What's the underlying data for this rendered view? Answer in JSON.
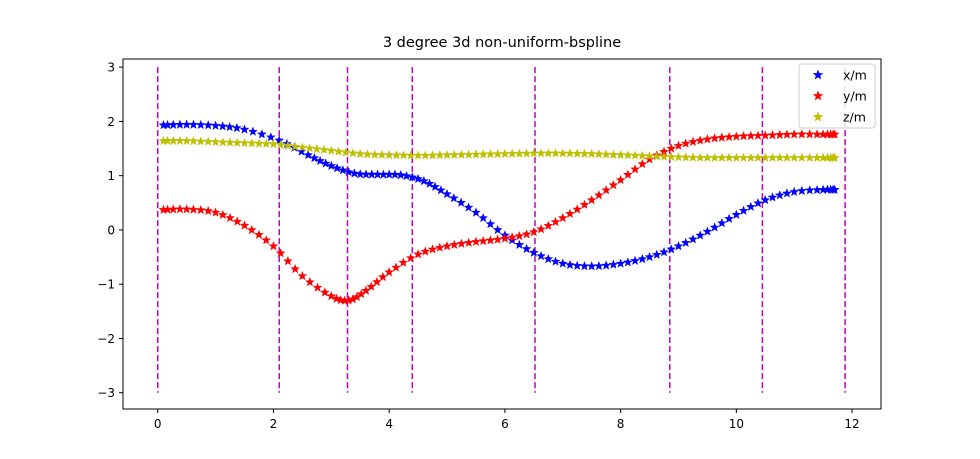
{
  "chart_data": {
    "type": "scatter",
    "title": "3 degree 3d non-uniform-bspline",
    "xlabel": "",
    "ylabel": "",
    "xlim": [
      -0.6,
      12.5
    ],
    "ylim": [
      -3.3,
      3.15
    ],
    "xticks": [
      0,
      2,
      4,
      6,
      8,
      10,
      12
    ],
    "yticks": [
      -3,
      -2,
      -1,
      0,
      1,
      2,
      3
    ],
    "xtick_labels": [
      "0",
      "2",
      "4",
      "6",
      "8",
      "10",
      "12"
    ],
    "ytick_labels": [
      "−3",
      "−2",
      "−1",
      "0",
      "1",
      "2",
      "3"
    ],
    "grid": false,
    "legend_position": "top-right",
    "marker": "star",
    "knot_lines": {
      "color": "#bf00bf",
      "style": "dashed",
      "x": [
        0.0,
        2.1,
        3.28,
        4.4,
        6.52,
        8.85,
        10.45,
        11.88
      ],
      "y_range": [
        -3,
        3
      ]
    },
    "series": [
      {
        "name": "x/m",
        "color": "#0000ff",
        "x": [
          0.1,
          0.5,
          1.0,
          1.5,
          2.1,
          2.6,
          3.0,
          3.4,
          3.8,
          4.2,
          4.6,
          5.0,
          5.5,
          6.0,
          6.5,
          7.0,
          7.5,
          8.0,
          8.5,
          9.0,
          9.5,
          10.0,
          10.5,
          11.0,
          11.5,
          11.7
        ],
        "y": [
          1.93,
          1.94,
          1.92,
          1.85,
          1.65,
          1.38,
          1.18,
          1.04,
          1.02,
          1.01,
          0.9,
          0.66,
          0.32,
          -0.1,
          -0.42,
          -0.62,
          -0.67,
          -0.62,
          -0.5,
          -0.3,
          -0.03,
          0.28,
          0.55,
          0.7,
          0.74,
          0.74
        ]
      },
      {
        "name": "y/m",
        "color": "#ff0000",
        "x": [
          0.1,
          0.5,
          1.0,
          1.5,
          2.0,
          2.5,
          3.0,
          3.3,
          3.6,
          4.0,
          4.5,
          5.0,
          5.5,
          6.0,
          6.5,
          7.0,
          7.5,
          8.0,
          8.5,
          9.0,
          9.5,
          10.0,
          10.5,
          11.0,
          11.5,
          11.7
        ],
        "y": [
          0.37,
          0.38,
          0.32,
          0.08,
          -0.3,
          -0.85,
          -1.22,
          -1.3,
          -1.12,
          -0.78,
          -0.45,
          -0.3,
          -0.22,
          -0.16,
          -0.04,
          0.22,
          0.55,
          0.92,
          1.3,
          1.55,
          1.67,
          1.72,
          1.74,
          1.76,
          1.76,
          1.76
        ]
      },
      {
        "name": "z/m",
        "color": "#bfbf00",
        "x": [
          0.1,
          0.5,
          1.0,
          1.5,
          2.0,
          2.5,
          3.0,
          3.5,
          4.0,
          4.5,
          5.0,
          5.5,
          6.0,
          6.5,
          7.0,
          7.5,
          8.0,
          8.5,
          9.0,
          9.5,
          10.0,
          10.5,
          11.0,
          11.5,
          11.7
        ],
        "y": [
          1.64,
          1.64,
          1.62,
          1.6,
          1.58,
          1.52,
          1.46,
          1.4,
          1.38,
          1.37,
          1.38,
          1.39,
          1.4,
          1.41,
          1.41,
          1.4,
          1.38,
          1.36,
          1.34,
          1.33,
          1.33,
          1.33,
          1.33,
          1.33,
          1.33
        ]
      }
    ]
  }
}
